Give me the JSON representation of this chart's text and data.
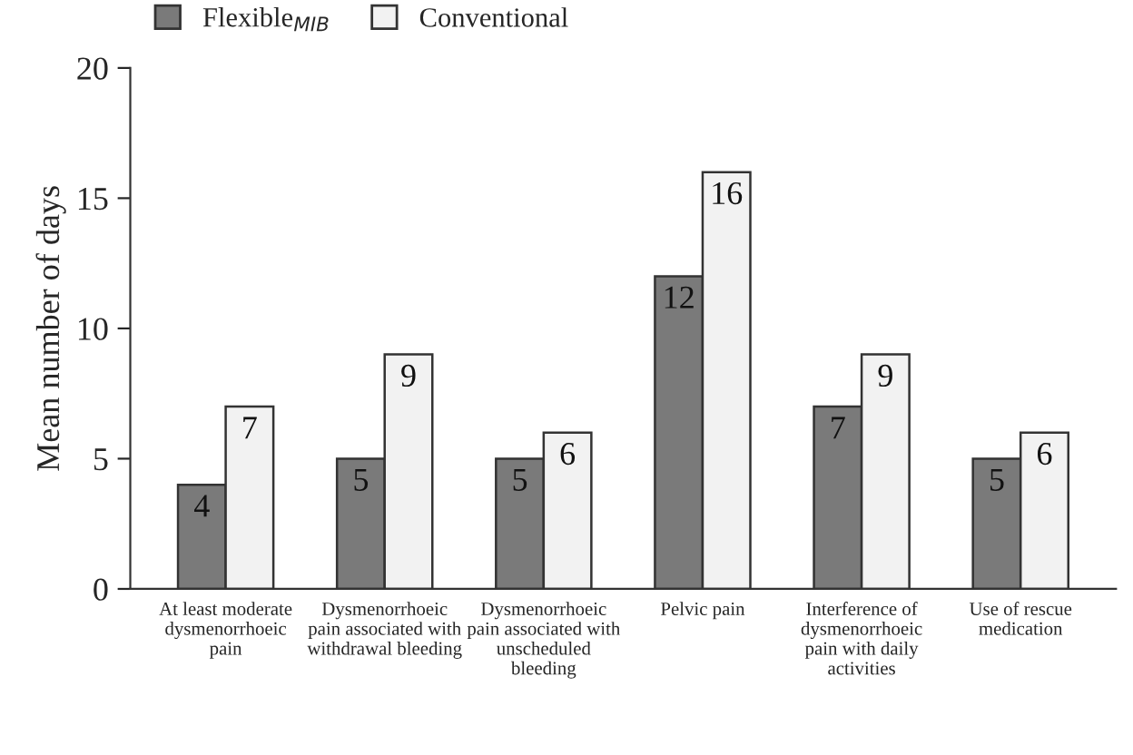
{
  "chart_data": {
    "type": "bar",
    "ylabel": "Mean number of days",
    "categories": [
      "At least moderate dysmenorrhoeic pain",
      "Dysmenorrhoeic pain associated with withdrawal bleeding",
      "Dysmenorrhoeic pain associated with unscheduled bleeding",
      "Pelvic pain",
      "Interference of dysmenorrhoeic pain with daily activities",
      "Use of rescue medication"
    ],
    "series": [
      {
        "name": "Flexible$_{MIB}$",
        "color": "#7a7a7a",
        "values": [
          4,
          5,
          5,
          12,
          7,
          5
        ]
      },
      {
        "name": "Conventional",
        "color": "#f2f2f2",
        "values": [
          7,
          9,
          6,
          16,
          9,
          6
        ]
      }
    ],
    "ylim": [
      0,
      20
    ],
    "yticks": [
      0,
      5,
      10,
      15,
      20
    ],
    "grid": false,
    "legend": "top left",
    "data_labels": true
  }
}
